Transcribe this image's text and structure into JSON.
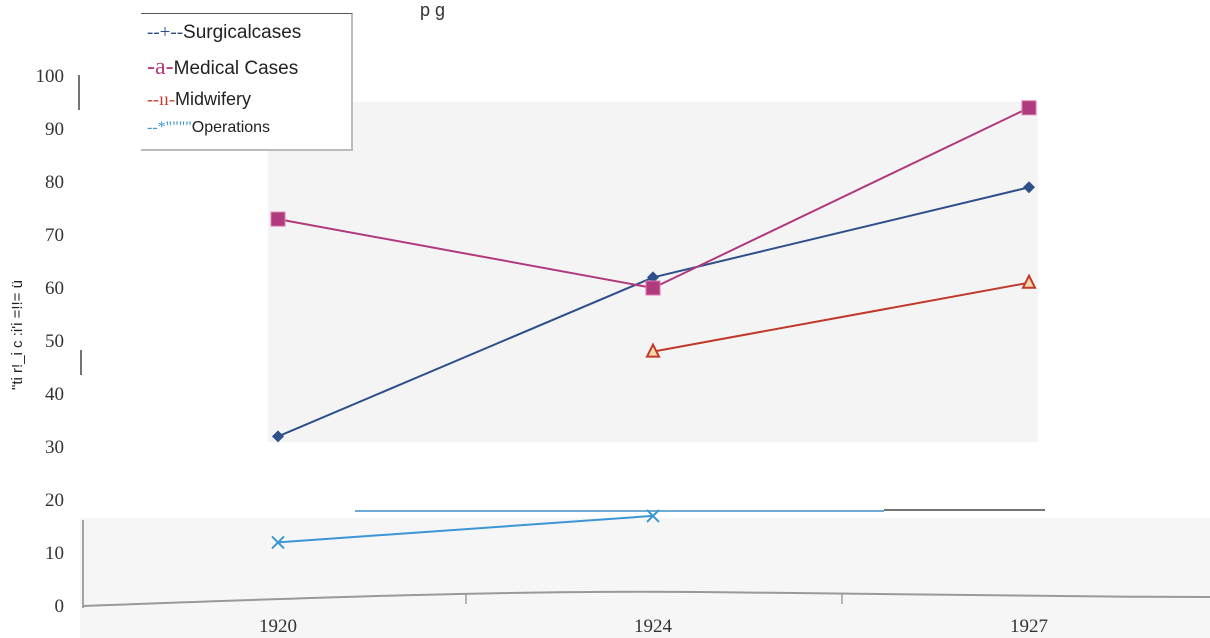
{
  "chart_data": {
    "type": "line",
    "title": "p         g",
    "ylabel": "\"ti r!_i c :i'i =!!= ü",
    "categories": [
      "1920",
      "1924",
      "1927"
    ],
    "y_ticks": [
      "0",
      "10",
      "20",
      "30",
      "40",
      "50",
      "60",
      "70",
      "80",
      "90",
      "100"
    ],
    "ylim": [
      0,
      100
    ],
    "legend_position": "top-left",
    "series": [
      {
        "name": "Surgicalcases",
        "marker_label": "--+--",
        "color": "#2f4f8a",
        "marker": "diamond",
        "values": [
          32,
          62,
          79
        ]
      },
      {
        "name": "Medical Cases",
        "marker_label": "-a-",
        "color": "#b03a7e",
        "marker": "square",
        "values": [
          73,
          60,
          94
        ]
      },
      {
        "name": "Midwifery",
        "marker_label": "--ıı-",
        "color": "#c0392b",
        "marker": "triangle",
        "values": [
          null,
          48,
          61
        ]
      },
      {
        "name": "Operations",
        "marker_label": "--*\"\"\"\"",
        "color": "#3a96d4",
        "marker": "x",
        "values": [
          12,
          17,
          null
        ]
      }
    ]
  }
}
